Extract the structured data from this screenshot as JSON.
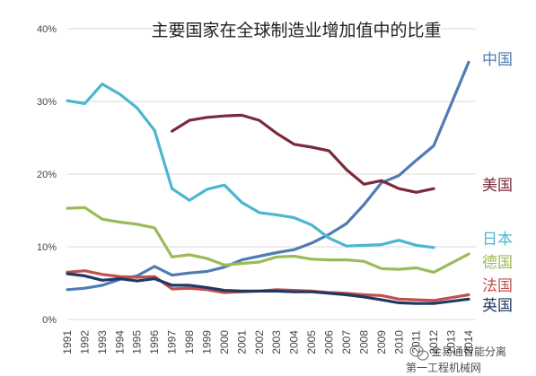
{
  "chart_data": {
    "type": "line",
    "title": "主要国家在全球制造业增加值中的比重",
    "xlabel": "",
    "ylabel": "",
    "x": [
      "1991",
      "1992",
      "1993",
      "1994",
      "1995",
      "1996",
      "1997",
      "1998",
      "1999",
      "2000",
      "2001",
      "2002",
      "2003",
      "2004",
      "2005",
      "2006",
      "2007",
      "2008",
      "2009",
      "2010",
      "2011",
      "2012",
      "2013",
      "2014"
    ],
    "y_ticks": [
      "0%",
      "10%",
      "20%",
      "30%",
      "40%"
    ],
    "ylim": [
      0,
      40
    ],
    "grid": "horizontal",
    "legend": "right, labels next to line ends",
    "series": [
      {
        "name": "中国",
        "color": "#4f7cb3",
        "values": [
          4.1,
          4.3,
          4.7,
          5.5,
          6.0,
          7.3,
          6.1,
          6.4,
          6.6,
          7.2,
          8.2,
          8.7,
          9.2,
          9.6,
          10.5,
          11.7,
          13.2,
          15.8,
          18.8,
          19.8,
          21.9,
          23.9,
          null,
          35.4
        ]
      },
      {
        "name": "美国",
        "color": "#7a2a3a",
        "values": [
          null,
          null,
          null,
          null,
          null,
          null,
          25.9,
          27.4,
          27.8,
          28.0,
          28.1,
          27.4,
          25.6,
          24.1,
          23.7,
          23.2,
          20.6,
          18.6,
          19.1,
          18.0,
          17.5,
          18.0,
          null,
          null
        ]
      },
      {
        "name": "日本",
        "color": "#4bb7cf",
        "values": [
          30.1,
          29.7,
          32.4,
          31.0,
          29.1,
          26.0,
          18.0,
          16.4,
          17.9,
          18.5,
          16.1,
          14.7,
          14.4,
          14.0,
          13.0,
          11.2,
          10.1,
          10.2,
          10.3,
          10.9,
          10.2,
          9.9,
          null,
          null
        ]
      },
      {
        "name": "德国",
        "color": "#9bbb59",
        "values": [
          15.3,
          15.4,
          13.8,
          13.4,
          13.1,
          12.6,
          8.6,
          8.9,
          8.4,
          7.5,
          7.7,
          7.9,
          8.6,
          8.7,
          8.3,
          8.2,
          8.2,
          8.0,
          7.0,
          6.9,
          7.1,
          6.5,
          null,
          9.0
        ]
      },
      {
        "name": "法国",
        "color": "#c0504d",
        "values": [
          6.5,
          6.7,
          6.2,
          5.9,
          5.8,
          5.9,
          4.2,
          4.3,
          4.1,
          3.7,
          3.8,
          3.9,
          4.1,
          4.0,
          3.9,
          3.7,
          3.6,
          3.4,
          3.3,
          2.8,
          2.7,
          2.6,
          null,
          3.4
        ]
      },
      {
        "name": "英国",
        "color": "#1f3864",
        "values": [
          6.3,
          6.0,
          5.4,
          5.6,
          5.3,
          5.6,
          4.7,
          4.7,
          4.4,
          4.0,
          3.9,
          3.9,
          3.9,
          3.8,
          3.8,
          3.6,
          3.4,
          3.1,
          2.7,
          2.3,
          2.2,
          2.2,
          null,
          2.8
        ]
      }
    ]
  },
  "watermark": {
    "line1": "金易通智能分离",
    "line2": "第一工程机械网"
  }
}
